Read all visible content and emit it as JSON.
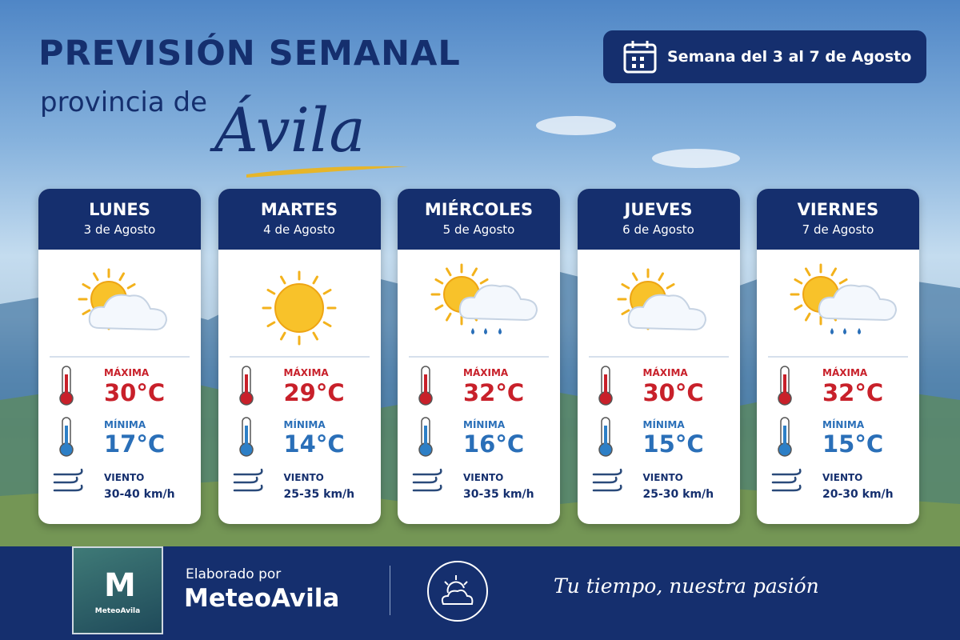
{
  "header": {
    "title": "PREVISIÓN SEMANAL",
    "subtitle": "provincia de",
    "place": "Ávila",
    "week": "Semana del 3 al 7 de Agosto"
  },
  "days": [
    {
      "name": "LUNES",
      "date": "3 de Agosto",
      "icon": "sun-cloud",
      "max_label": "MÁXIMA",
      "max": "30°C",
      "min_label": "MÍNIMA",
      "min": "17°C",
      "wind_label": "VIENTO",
      "wind": "30-40 km/h"
    },
    {
      "name": "MARTES",
      "date": "4 de Agosto",
      "icon": "sun",
      "max_label": "MÁXIMA",
      "max": "29°C",
      "min_label": "MÍNIMA",
      "min": "14°C",
      "wind_label": "VIENTO",
      "wind": "25-35 km/h"
    },
    {
      "name": "MIÉRCOLES",
      "date": "5 de Agosto",
      "icon": "sun-cloud-rain",
      "max_label": "MÁXIMA",
      "max": "32°C",
      "min_label": "MÍNIMA",
      "min": "16°C",
      "wind_label": "VIENTO",
      "wind": "30-35 km/h"
    },
    {
      "name": "JUEVES",
      "date": "6 de Agosto",
      "icon": "sun-cloud",
      "max_label": "MÁXIMA",
      "max": "30°C",
      "min_label": "MÍNIMA",
      "min": "15°C",
      "wind_label": "VIENTO",
      "wind": "25-30 km/h"
    },
    {
      "name": "VIERNES",
      "date": "7 de Agosto",
      "icon": "sun-cloud-rain",
      "max_label": "MÁXIMA",
      "max": "32°C",
      "min_label": "MÍNIMA",
      "min": "15°C",
      "wind_label": "VIENTO",
      "wind": "20-30 km/h"
    }
  ],
  "footer": {
    "made_by": "Elaborado por",
    "brand": "MeteoAvila",
    "logo_text": "MeteoAvila",
    "slogan": "Tu tiempo, nuestra pasión"
  }
}
